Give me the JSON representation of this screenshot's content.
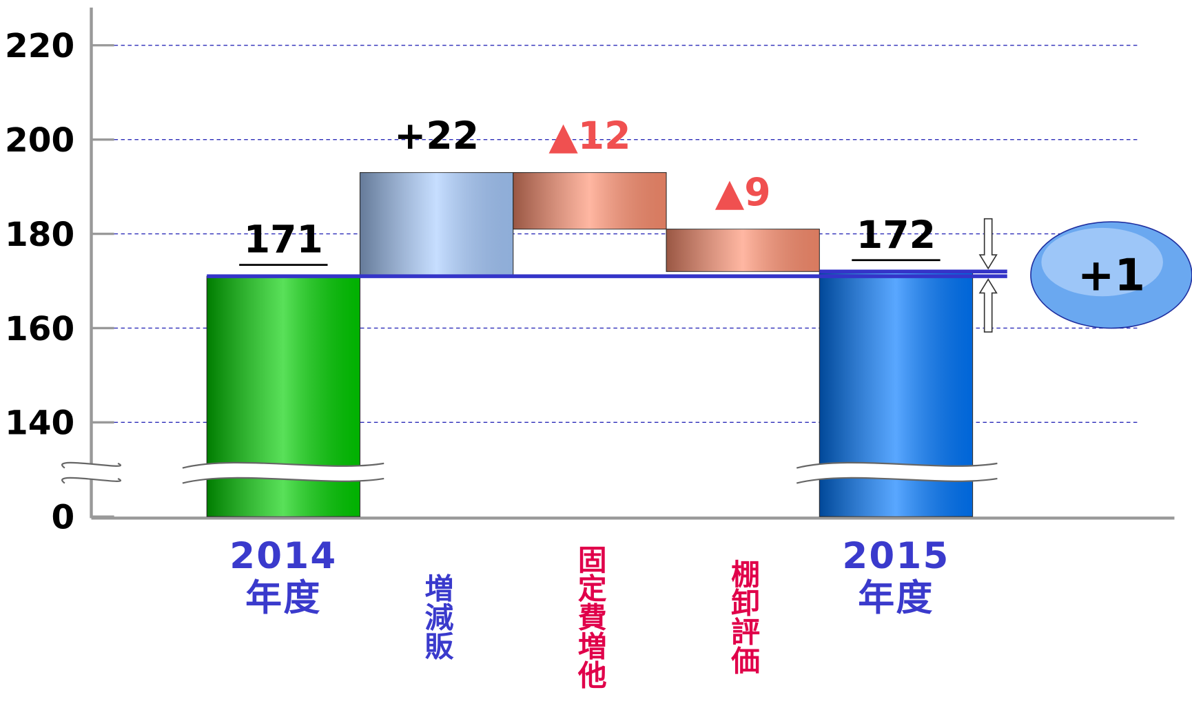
{
  "chart_data": {
    "type": "waterfall",
    "categories": [
      "2014年度",
      "増減販",
      "固定費増他",
      "棚卸評価",
      "2015年度"
    ],
    "values": [
      171,
      22,
      -12,
      -9,
      172
    ],
    "value_labels": [
      "171",
      "+22",
      "▲12",
      "▲9",
      "172"
    ],
    "colors": [
      "#00d000",
      "#a8ccff",
      "#ff9070",
      "#ff9070",
      "#0078ff"
    ],
    "category_colors": [
      "#3a3acc",
      "#3a3acc",
      "#e0004a",
      "#e0004a",
      "#3a3acc"
    ],
    "label_colors": [
      "#000000",
      "#000000",
      "#f05050",
      "#f05050",
      "#000000"
    ],
    "difference": {
      "value": 1,
      "label": "+1"
    },
    "ylim": [
      0,
      228
    ],
    "yticks": [
      0,
      140,
      160,
      180,
      200,
      220
    ],
    "ybreak": [
      0,
      130
    ],
    "grid": true
  }
}
